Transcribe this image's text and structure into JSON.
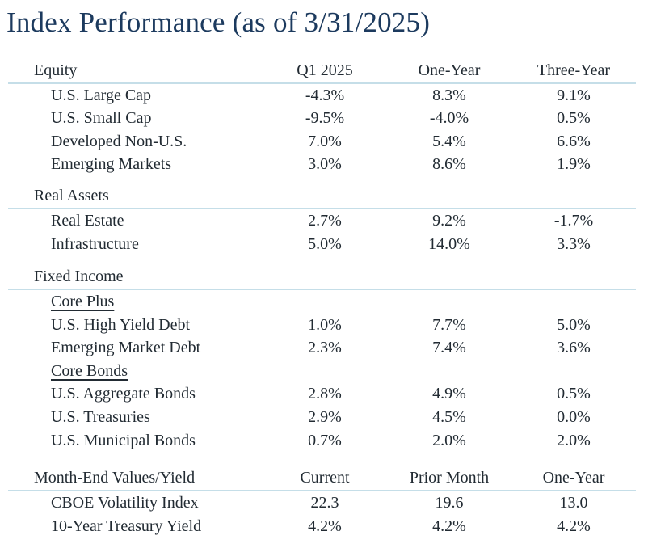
{
  "title": "Index Performance (as of 3/31/2025)",
  "colors": {
    "title": "#1c3a5e",
    "text": "#222b33",
    "rule": "#c5dee8"
  },
  "chart_data": {
    "type": "table",
    "title": "Index Performance (as of 3/31/2025)",
    "sections": [
      {
        "name": "equity",
        "header": "Equity",
        "columns": [
          "Q1 2025",
          "One-Year",
          "Three-Year"
        ],
        "rows": [
          {
            "type": "data",
            "label": "U.S. Large Cap",
            "values": [
              "-4.3%",
              "8.3%",
              "9.1%"
            ]
          },
          {
            "type": "data",
            "label": "U.S. Small Cap",
            "values": [
              "-9.5%",
              "-4.0%",
              "0.5%"
            ]
          },
          {
            "type": "data",
            "label": "Developed Non-U.S.",
            "values": [
              "7.0%",
              "5.4%",
              "6.6%"
            ]
          },
          {
            "type": "data",
            "label": "Emerging Markets",
            "values": [
              "3.0%",
              "8.6%",
              "1.9%"
            ]
          }
        ]
      },
      {
        "name": "real-assets",
        "header": "Real Assets",
        "columns": [
          "",
          "",
          ""
        ],
        "rows": [
          {
            "type": "data",
            "label": "Real Estate",
            "values": [
              "2.7%",
              "9.2%",
              "-1.7%"
            ]
          },
          {
            "type": "data",
            "label": "Infrastructure",
            "values": [
              "5.0%",
              "14.0%",
              "3.3%"
            ]
          }
        ]
      },
      {
        "name": "fixed-income",
        "header": "Fixed Income",
        "columns": [
          "",
          "",
          ""
        ],
        "rows": [
          {
            "type": "subheader",
            "label": "Core Plus"
          },
          {
            "type": "data",
            "label": "U.S. High Yield Debt",
            "values": [
              "1.0%",
              "7.7%",
              "5.0%"
            ]
          },
          {
            "type": "data",
            "label": "Emerging Market Debt",
            "values": [
              "2.3%",
              "7.4%",
              "3.6%"
            ]
          },
          {
            "type": "subheader",
            "label": "Core Bonds"
          },
          {
            "type": "data",
            "label": "U.S. Aggregate Bonds",
            "values": [
              "2.8%",
              "4.9%",
              "0.5%"
            ]
          },
          {
            "type": "data",
            "label": "U.S. Treasuries",
            "values": [
              "2.9%",
              "4.5%",
              "0.0%"
            ]
          },
          {
            "type": "data",
            "label": "U.S. Municipal Bonds",
            "values": [
              "0.7%",
              "2.0%",
              "2.0%"
            ]
          }
        ]
      },
      {
        "name": "month-end",
        "header": "Month-End Values/Yield",
        "columns": [
          "Current",
          "Prior Month",
          "One-Year"
        ],
        "rows": [
          {
            "type": "data",
            "label": "CBOE Volatility Index",
            "values": [
              "22.3",
              "19.6",
              "13.0"
            ]
          },
          {
            "type": "data",
            "label": "10-Year Treasury Yield",
            "values": [
              "4.2%",
              "4.2%",
              "4.2%"
            ]
          }
        ]
      }
    ]
  }
}
